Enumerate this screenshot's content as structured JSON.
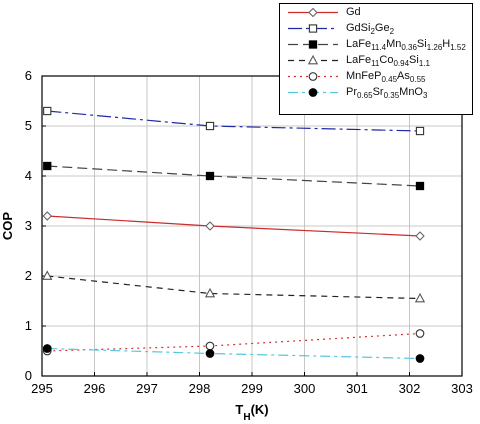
{
  "chart_data": {
    "type": "line",
    "xlabel": "T_H (K)",
    "ylabel": "COP",
    "xlim": [
      295,
      303
    ],
    "ylim": [
      0,
      6
    ],
    "x_ticks": [
      295,
      296,
      297,
      298,
      299,
      300,
      301,
      302,
      303
    ],
    "y_ticks": [
      0,
      1,
      2,
      3,
      4,
      5,
      6
    ],
    "grid": true,
    "legend_position": "top-right",
    "series": [
      {
        "name": "Gd",
        "name_parts": [
          {
            "t": "Gd",
            "s": "n"
          }
        ],
        "x": [
          295.1,
          298.2,
          302.2
        ],
        "y": [
          3.2,
          3.0,
          2.8
        ],
        "line": "solid",
        "marker": "diamond-open",
        "color": "#cc2b2b",
        "marker_color": "#666666"
      },
      {
        "name": "GdSi2Ge2",
        "name_parts": [
          {
            "t": "GdSi",
            "s": "n"
          },
          {
            "t": "2",
            "s": "sub"
          },
          {
            "t": "Ge",
            "s": "n"
          },
          {
            "t": "2",
            "s": "sub"
          }
        ],
        "x": [
          295.1,
          298.2,
          302.2
        ],
        "y": [
          5.3,
          5.0,
          4.9
        ],
        "line": "dash-dot",
        "marker": "square-open",
        "color": "#1f2aa6",
        "marker_color": "#333333"
      },
      {
        "name": "LaFe11.4Mn0.36Si1.26H1.52",
        "name_parts": [
          {
            "t": "LaFe",
            "s": "n"
          },
          {
            "t": "11.4",
            "s": "sub"
          },
          {
            "t": "Mn",
            "s": "n"
          },
          {
            "t": "0.36",
            "s": "sub"
          },
          {
            "t": "Si",
            "s": "n"
          },
          {
            "t": "1.26",
            "s": "sub"
          },
          {
            "t": "H",
            "s": "n"
          },
          {
            "t": "1.52",
            "s": "sub"
          }
        ],
        "x": [
          295.1,
          298.2,
          302.2
        ],
        "y": [
          4.2,
          4.0,
          3.8
        ],
        "line": "long-dash",
        "marker": "square-filled",
        "color": "#444444",
        "marker_color": "#000000"
      },
      {
        "name": "LaFe11Co0.94Si1.1",
        "name_parts": [
          {
            "t": "LaFe",
            "s": "n"
          },
          {
            "t": "11",
            "s": "sub"
          },
          {
            "t": "Co",
            "s": "n"
          },
          {
            "t": "0.94",
            "s": "sub"
          },
          {
            "t": "Si",
            "s": "n"
          },
          {
            "t": "1.1",
            "s": "sub"
          }
        ],
        "x": [
          295.1,
          298.2,
          302.2
        ],
        "y": [
          2.0,
          1.65,
          1.55
        ],
        "line": "dash",
        "marker": "triangle-open",
        "color": "#222222",
        "marker_color": "#555555"
      },
      {
        "name": "MnFeP0.45As0.55",
        "name_parts": [
          {
            "t": "MnFeP",
            "s": "n"
          },
          {
            "t": "0.45",
            "s": "sub"
          },
          {
            "t": "As",
            "s": "n"
          },
          {
            "t": "0.55",
            "s": "sub"
          }
        ],
        "x": [
          295.1,
          298.2,
          302.2
        ],
        "y": [
          0.5,
          0.6,
          0.85
        ],
        "line": "dotted",
        "marker": "circle-open",
        "color": "#d23232",
        "marker_color": "#333333"
      },
      {
        "name": "Pr0.65Sr0.35MnO3",
        "name_parts": [
          {
            "t": "Pr",
            "s": "n"
          },
          {
            "t": "0.65",
            "s": "sub"
          },
          {
            "t": "Sr",
            "s": "n"
          },
          {
            "t": "0.35",
            "s": "sub"
          },
          {
            "t": "MnO",
            "s": "n"
          },
          {
            "t": "3",
            "s": "sub"
          }
        ],
        "x": [
          295.1,
          298.2,
          302.2
        ],
        "y": [
          0.55,
          0.45,
          0.35
        ],
        "line": "dash-dot-light",
        "marker": "circle-filled",
        "color": "#55c8e0",
        "marker_color": "#000000"
      }
    ]
  }
}
